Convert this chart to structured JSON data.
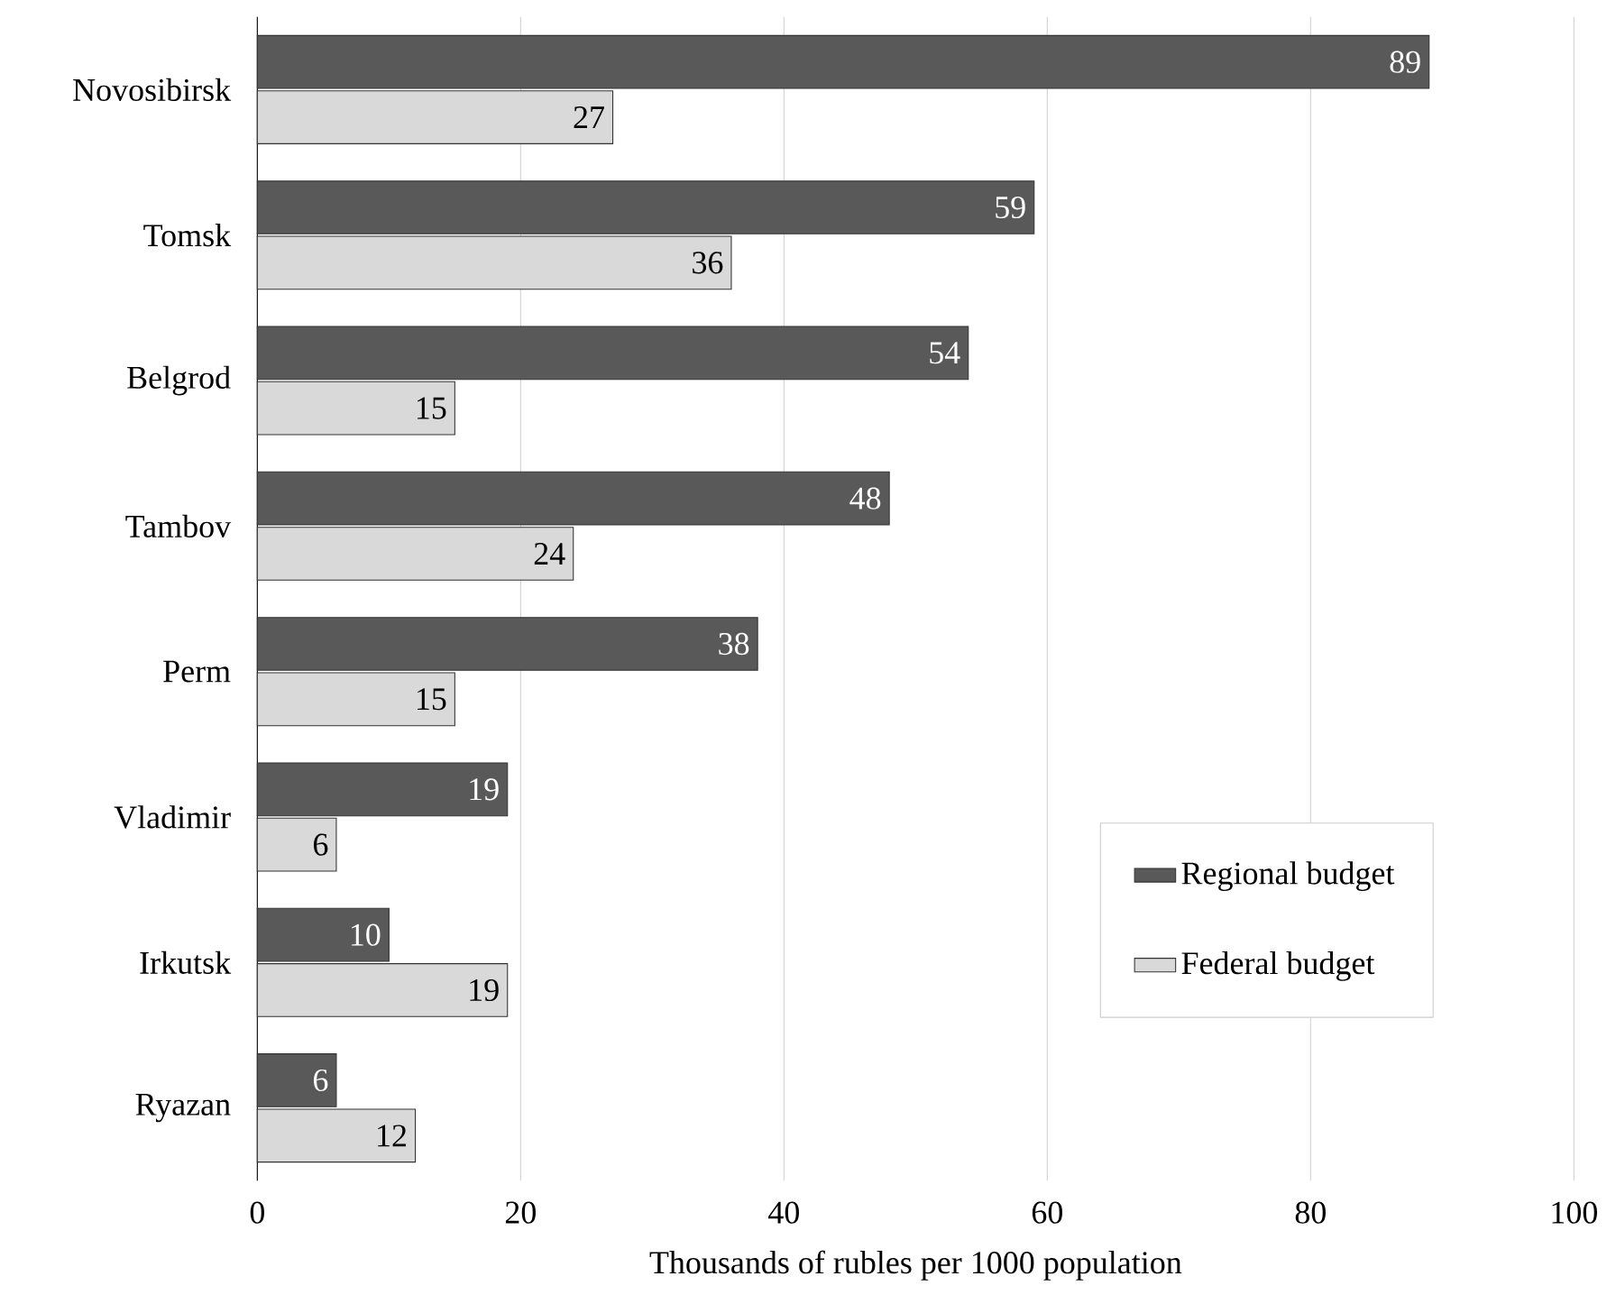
{
  "chart_data": {
    "type": "bar",
    "orientation": "horizontal",
    "categories": [
      "Novosibirsk",
      "Tomsk",
      "Belgrod",
      "Tambov",
      "Perm",
      "Vladimir",
      "Irkutsk",
      "Ryazan"
    ],
    "series": [
      {
        "name": "Regional budget",
        "color": "#595959",
        "values": [
          89,
          59,
          54,
          48,
          38,
          19,
          10,
          6
        ]
      },
      {
        "name": "Federal budget",
        "color": "#d9d9d9",
        "values": [
          27,
          36,
          15,
          24,
          15,
          6,
          19,
          12
        ]
      }
    ],
    "xlabel": "Thousands of rubles per 1000 population",
    "xlim": [
      0,
      100
    ],
    "xticks": [
      0,
      20,
      40,
      60,
      80,
      100
    ],
    "grid": "x",
    "legend": "right",
    "data_labels": true
  }
}
